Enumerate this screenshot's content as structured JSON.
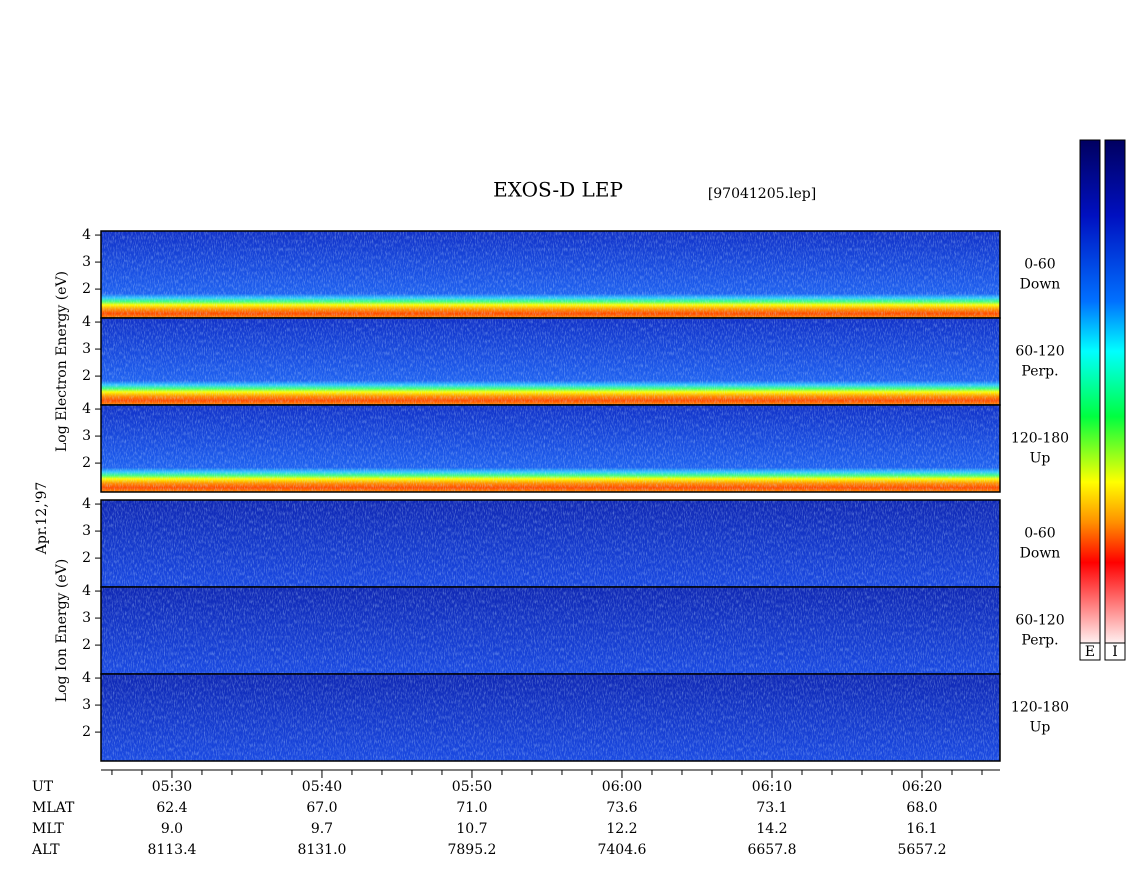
{
  "chart_data": {
    "type": "spectrogram",
    "title": "EXOS-D LEP",
    "file_label": "[97041205.lep]",
    "date_label": "Apr.12,'97",
    "xlim": [
      325.27,
      385.2
    ],
    "xticks": [
      {
        "value": 330,
        "label": "05:30"
      },
      {
        "value": 340,
        "label": "05:40"
      },
      {
        "value": 350,
        "label": "05:50"
      },
      {
        "value": 360,
        "label": "06:00"
      },
      {
        "value": 370,
        "label": "06:10"
      },
      {
        "value": 380,
        "label": "06:20"
      }
    ],
    "xminorticks": [
      326,
      328,
      332,
      334,
      336,
      338,
      342,
      344,
      346,
      348,
      352,
      354,
      356,
      358,
      362,
      364,
      366,
      368,
      372,
      374,
      376,
      378,
      382,
      384
    ],
    "groups": [
      {
        "name": "electron",
        "ylabel": "Log Electron Energy (eV)",
        "ylim": [
          0.93,
          4.15
        ],
        "yticks": [
          2,
          3,
          4
        ],
        "panels": [
          {
            "pitch": "0-60",
            "direction": "Down"
          },
          {
            "pitch": "60-120",
            "direction": "Perp."
          },
          {
            "pitch": "120-180",
            "direction": "Up"
          }
        ]
      },
      {
        "name": "ion",
        "ylabel": "Log Ion Energy (eV)",
        "ylim": [
          0.93,
          4.15
        ],
        "yticks": [
          2,
          3,
          4
        ],
        "panels": [
          {
            "pitch": "0-60",
            "direction": "Down"
          },
          {
            "pitch": "60-120",
            "direction": "Perp."
          },
          {
            "pitch": "120-180",
            "direction": "Up"
          }
        ]
      }
    ],
    "colorbar_labels": [
      "E",
      "I"
    ],
    "ut_label": "UT",
    "table": [
      [
        "MLAT",
        "62.4",
        "67.0",
        "71.0",
        "73.6",
        "73.1",
        "68.0"
      ],
      [
        "MLT",
        "9.0",
        "9.7",
        "10.7",
        "12.2",
        "14.2",
        "16.1"
      ],
      [
        "ALT",
        "8113.4",
        "8131.0",
        "7895.2",
        "7404.6",
        "6657.8",
        "5657.2"
      ]
    ]
  }
}
